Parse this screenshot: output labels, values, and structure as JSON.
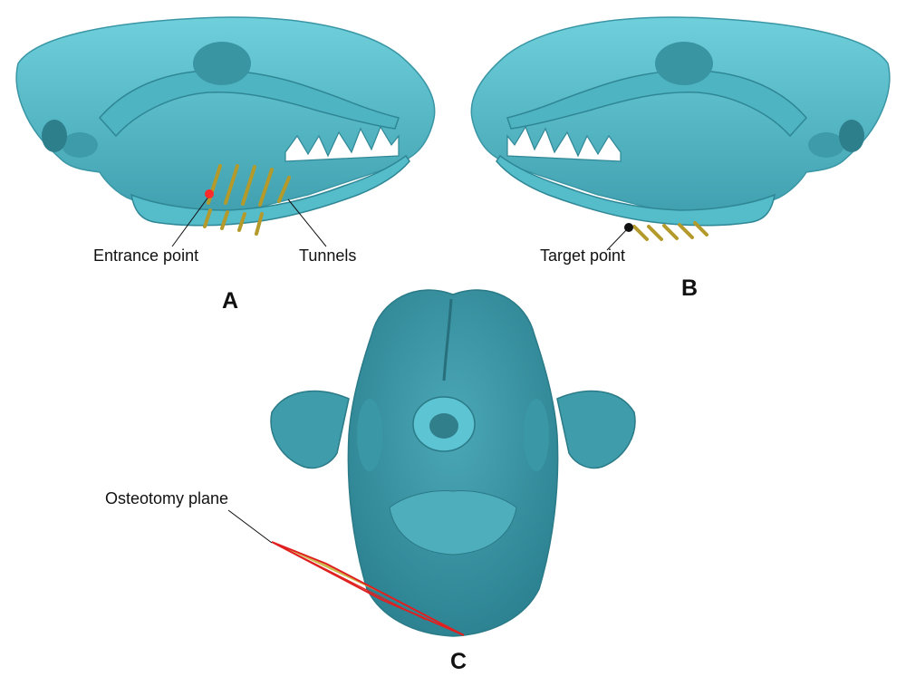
{
  "figure": {
    "panels": [
      {
        "id": "A",
        "letter": "A",
        "callouts": [
          "Entrance point",
          "Tunnels"
        ]
      },
      {
        "id": "B",
        "letter": "B",
        "callouts": [
          "Target point"
        ]
      },
      {
        "id": "C",
        "letter": "C",
        "callouts": [
          "Osteotomy plane"
        ]
      }
    ]
  },
  "colors": {
    "bone": "#5ac2cf",
    "bone_shadow": "#3d9fae",
    "bone_dark": "#2b7f8e",
    "tunnel": "#b39a2a",
    "entrance_marker": "#ff2a2a",
    "target_marker": "#111111",
    "plane_fill": "#c7b43a",
    "plane_edge": "#e02020"
  },
  "icons": {
    "entrance_marker": "red-dot",
    "target_marker": "black-dot"
  }
}
